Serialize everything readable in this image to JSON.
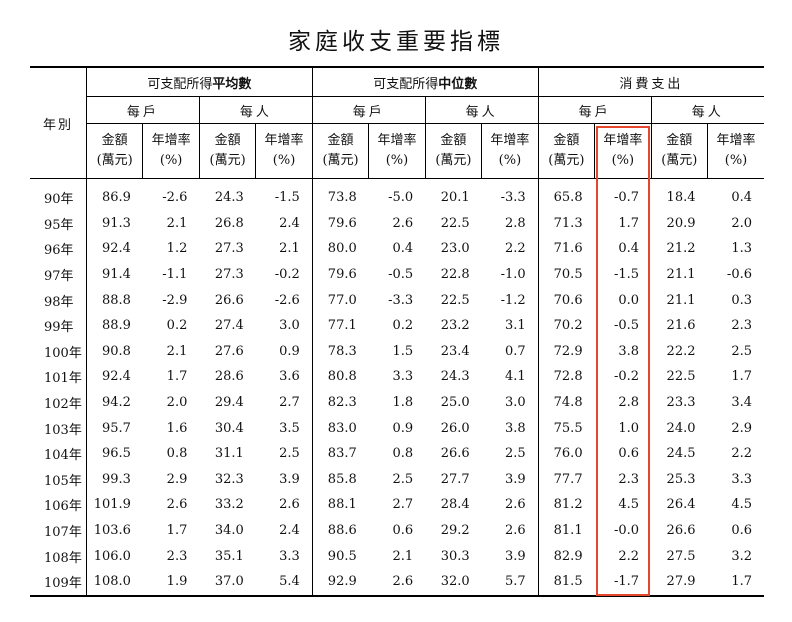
{
  "title": "家庭收支重要指標",
  "header": {
    "year_label": "年別",
    "groups": [
      {
        "prefix": "可支配所得",
        "bold": "平均數"
      },
      {
        "prefix": "可支配所得",
        "bold": "中位數"
      },
      {
        "prefix": "消費支出",
        "bold": ""
      }
    ],
    "per_household": "每戶",
    "per_person": "每人",
    "amount_line1": "金額",
    "amount_line2": "(萬元)",
    "rate_line1": "年增率",
    "rate_line2": "(%)"
  },
  "highlight_color": "#e4462e",
  "rows": [
    {
      "year": "90年",
      "v": [
        "86.9",
        "-2.6",
        "24.3",
        "-1.5",
        "73.8",
        "-5.0",
        "20.1",
        "-3.3",
        "65.8",
        "-0.7",
        "18.4",
        "0.4"
      ]
    },
    {
      "year": "95年",
      "v": [
        "91.3",
        "2.1",
        "26.8",
        "2.4",
        "79.6",
        "2.6",
        "22.5",
        "2.8",
        "71.3",
        "1.7",
        "20.9",
        "2.0"
      ]
    },
    {
      "year": "96年",
      "v": [
        "92.4",
        "1.2",
        "27.3",
        "2.1",
        "80.0",
        "0.4",
        "23.0",
        "2.2",
        "71.6",
        "0.4",
        "21.2",
        "1.3"
      ]
    },
    {
      "year": "97年",
      "v": [
        "91.4",
        "-1.1",
        "27.3",
        "-0.2",
        "79.6",
        "-0.5",
        "22.8",
        "-1.0",
        "70.5",
        "-1.5",
        "21.1",
        "-0.6"
      ]
    },
    {
      "year": "98年",
      "v": [
        "88.8",
        "-2.9",
        "26.6",
        "-2.6",
        "77.0",
        "-3.3",
        "22.5",
        "-1.2",
        "70.6",
        "0.0",
        "21.1",
        "0.3"
      ]
    },
    {
      "year": "99年",
      "v": [
        "88.9",
        "0.2",
        "27.4",
        "3.0",
        "77.1",
        "0.2",
        "23.2",
        "3.1",
        "70.2",
        "-0.5",
        "21.6",
        "2.3"
      ]
    },
    {
      "year": "100年",
      "v": [
        "90.8",
        "2.1",
        "27.6",
        "0.9",
        "78.3",
        "1.5",
        "23.4",
        "0.7",
        "72.9",
        "3.8",
        "22.2",
        "2.5"
      ]
    },
    {
      "year": "101年",
      "v": [
        "92.4",
        "1.7",
        "28.6",
        "3.6",
        "80.8",
        "3.3",
        "24.3",
        "4.1",
        "72.8",
        "-0.2",
        "22.5",
        "1.7"
      ]
    },
    {
      "year": "102年",
      "v": [
        "94.2",
        "2.0",
        "29.4",
        "2.7",
        "82.3",
        "1.8",
        "25.0",
        "3.0",
        "74.8",
        "2.8",
        "23.3",
        "3.4"
      ]
    },
    {
      "year": "103年",
      "v": [
        "95.7",
        "1.6",
        "30.4",
        "3.5",
        "83.0",
        "0.9",
        "26.0",
        "3.8",
        "75.5",
        "1.0",
        "24.0",
        "2.9"
      ]
    },
    {
      "year": "104年",
      "v": [
        "96.5",
        "0.8",
        "31.1",
        "2.5",
        "83.7",
        "0.8",
        "26.6",
        "2.5",
        "76.0",
        "0.6",
        "24.5",
        "2.2"
      ]
    },
    {
      "year": "105年",
      "v": [
        "99.3",
        "2.9",
        "32.3",
        "3.9",
        "85.8",
        "2.5",
        "27.7",
        "3.9",
        "77.7",
        "2.3",
        "25.3",
        "3.3"
      ]
    },
    {
      "year": "106年",
      "v": [
        "101.9",
        "2.6",
        "33.2",
        "2.6",
        "88.1",
        "2.7",
        "28.4",
        "2.6",
        "81.2",
        "4.5",
        "26.4",
        "4.5"
      ]
    },
    {
      "year": "107年",
      "v": [
        "103.6",
        "1.7",
        "34.0",
        "2.4",
        "88.6",
        "0.6",
        "29.2",
        "2.6",
        "81.1",
        "-0.0",
        "26.6",
        "0.6"
      ]
    },
    {
      "year": "108年",
      "v": [
        "106.0",
        "2.3",
        "35.1",
        "3.3",
        "90.5",
        "2.1",
        "30.3",
        "3.9",
        "82.9",
        "2.2",
        "27.5",
        "3.2"
      ]
    },
    {
      "year": "109年",
      "v": [
        "108.0",
        "1.9",
        "37.0",
        "5.4",
        "92.9",
        "2.6",
        "32.0",
        "5.7",
        "81.5",
        "-1.7",
        "27.9",
        "1.7"
      ]
    }
  ]
}
